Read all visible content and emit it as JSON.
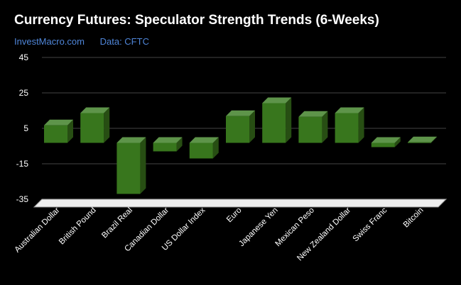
{
  "title": "Currency Futures: Speculator Strength Trends (6-Weeks)",
  "subtitle": {
    "site": "InvestMacro.com",
    "source": "Data: CFTC"
  },
  "colors": {
    "bar_front": "#38761d",
    "bar_top": "#5e944a",
    "bar_side": "#274e13",
    "grid": "#444444",
    "floor": "#eeeeee",
    "subtitle": "#4f86d9"
  },
  "chart_data": {
    "type": "bar",
    "title": "Currency Futures: Speculator Strength Trends (6-Weeks)",
    "categories": [
      "Australian Dollar",
      "British Pound",
      "Brazil Real",
      "Canadian Dollar",
      "US Dollar Index",
      "Euro",
      "Japanese Yen",
      "Mexican Peso",
      "New Zealand Dollar",
      "Swiss Franc",
      "Bitcoin"
    ],
    "values": [
      9.9,
      16.8,
      -28.8,
      -4.8,
      -8.8,
      15.1,
      22.4,
      14.7,
      16.8,
      -2.4,
      0.3
    ],
    "yticks": [
      "45",
      "25",
      "5",
      "-15",
      "-35"
    ],
    "ylim": [
      -35,
      45
    ],
    "grid": true,
    "legend": "none",
    "style": "3d-bar"
  }
}
